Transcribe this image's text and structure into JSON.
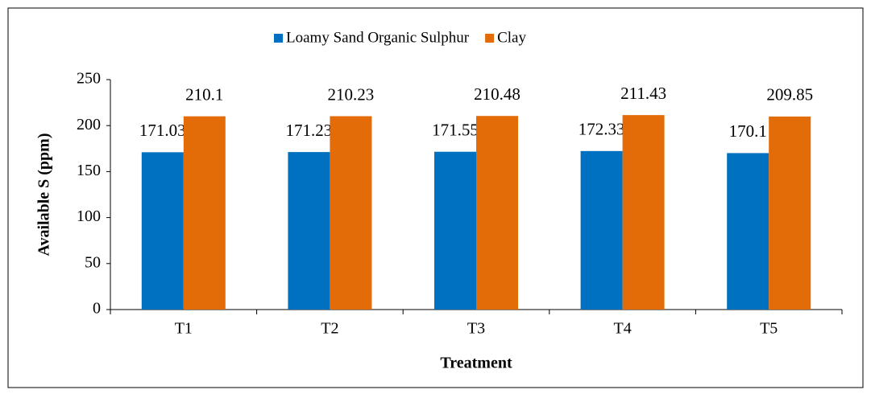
{
  "chart_data": {
    "type": "bar",
    "categories": [
      "T1",
      "T2",
      "T3",
      "T4",
      "T5"
    ],
    "series": [
      {
        "name": "Loamy Sand Organic Sulphur",
        "color": "#0070c0",
        "values": [
          171.03,
          171.23,
          171.55,
          172.33,
          170.1
        ]
      },
      {
        "name": "Clay",
        "color": "#e36c09",
        "values": [
          210.1,
          210.23,
          210.48,
          211.43,
          209.85
        ]
      }
    ],
    "ylim": [
      0,
      250
    ],
    "yticks": [
      0,
      50,
      100,
      150,
      200,
      250
    ],
    "xlabel": "Treatment",
    "ylabel": "Available S (ppm)",
    "legend": "top"
  }
}
